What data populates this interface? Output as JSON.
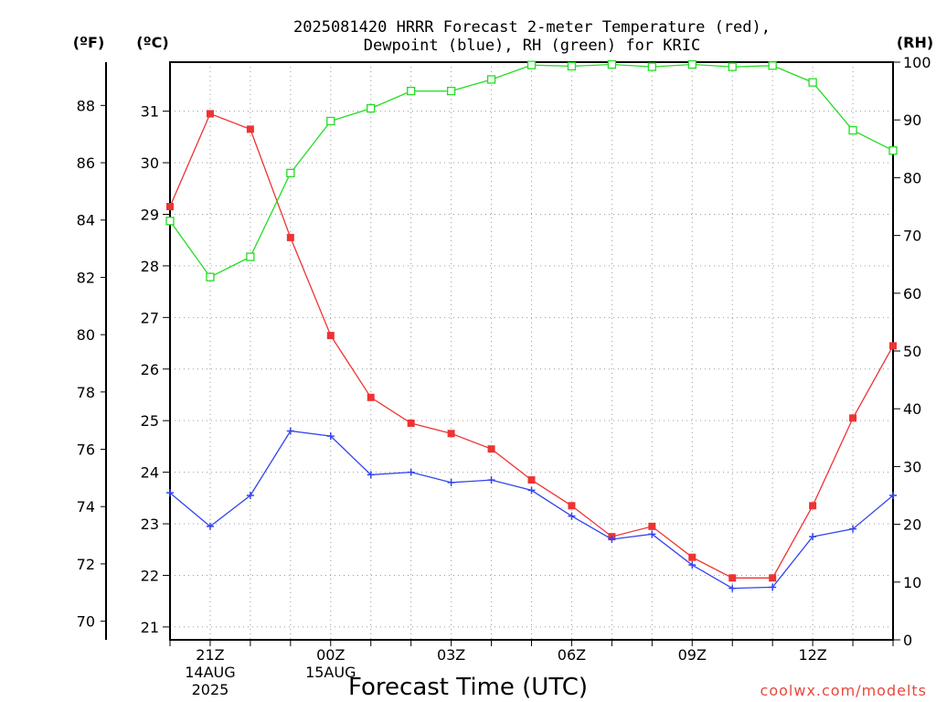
{
  "chart_data": {
    "type": "line",
    "title_lines": [
      "2025081420 HRRR Forecast 2-meter Temperature (red),",
      "Dewpoint (blue), RH (green) for KRIC"
    ],
    "xlabel": "Forecast Time (UTC)",
    "credit": "coolwx.com/modelts",
    "units": {
      "f": "(ºF)",
      "c": "(ºC)",
      "rh": "(RH)"
    },
    "x_hours": [
      20,
      21,
      22,
      23,
      24,
      25,
      26,
      27,
      28,
      29,
      30,
      31,
      32,
      33,
      34,
      35,
      36,
      37,
      38
    ],
    "x_ticks": [
      {
        "hour": 21,
        "lines": [
          "21Z",
          "14AUG",
          "2025"
        ]
      },
      {
        "hour": 24,
        "lines": [
          "00Z",
          "15AUG"
        ]
      },
      {
        "hour": 27,
        "lines": [
          "03Z"
        ]
      },
      {
        "hour": 30,
        "lines": [
          "06Z"
        ]
      },
      {
        "hour": 33,
        "lines": [
          "09Z"
        ]
      },
      {
        "hour": 36,
        "lines": [
          "12Z"
        ]
      }
    ],
    "x_range": [
      20,
      38
    ],
    "c_range": [
      20.75,
      31.95
    ],
    "c_ticks": [
      21,
      22,
      23,
      24,
      25,
      26,
      27,
      28,
      29,
      30,
      31
    ],
    "f_ticks": [
      70,
      72,
      74,
      76,
      78,
      80,
      82,
      84,
      86,
      88
    ],
    "rh_range": [
      0,
      100
    ],
    "rh_ticks": [
      0,
      10,
      20,
      30,
      40,
      50,
      60,
      70,
      80,
      90,
      100
    ],
    "grid": true,
    "series": [
      {
        "key": "temperature",
        "axis": "c",
        "color": "#ee3333",
        "marker": "filled-square",
        "values": [
          29.15,
          30.95,
          30.65,
          28.55,
          26.65,
          25.45,
          24.95,
          24.75,
          24.45,
          23.85,
          23.35,
          22.75,
          22.95,
          22.35,
          21.95,
          21.95,
          23.35,
          25.05,
          26.45
        ]
      },
      {
        "key": "dewpoint",
        "axis": "c",
        "color": "#3344ee",
        "marker": "plus",
        "values": [
          23.6,
          22.95,
          23.55,
          24.8,
          24.7,
          23.95,
          24.0,
          23.8,
          23.85,
          23.65,
          23.15,
          22.7,
          22.8,
          22.2,
          21.75,
          21.77,
          22.75,
          22.9,
          23.55
        ]
      },
      {
        "key": "rh",
        "axis": "rh",
        "color": "#22dd22",
        "marker": "open-square",
        "values": [
          72.5,
          62.8,
          66.3,
          80.8,
          89.8,
          92.0,
          95.0,
          95.0,
          97.0,
          99.5,
          99.3,
          99.6,
          99.2,
          99.6,
          99.2,
          99.4,
          96.5,
          88.2,
          84.7
        ]
      }
    ]
  }
}
